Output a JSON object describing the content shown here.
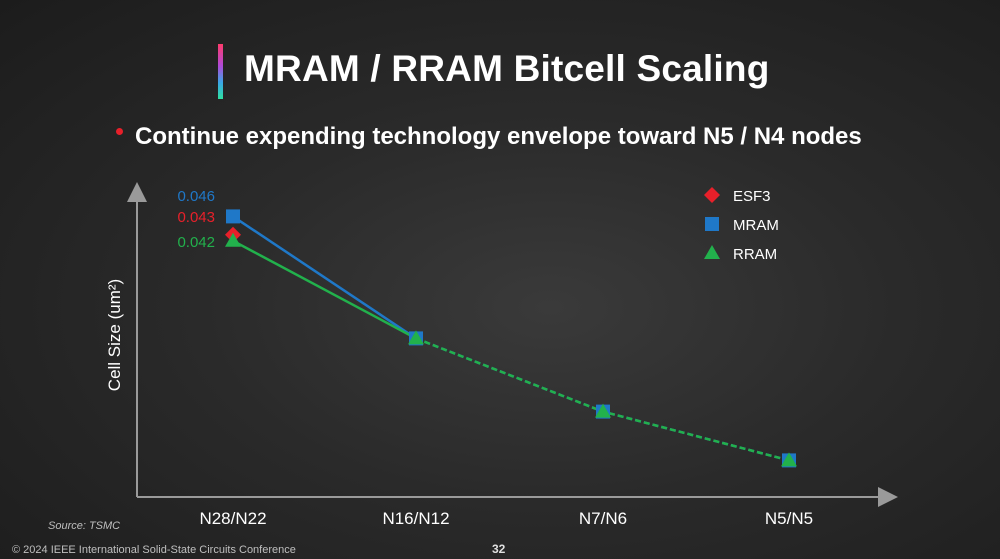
{
  "slide": {
    "title": "MRAM / RRAM Bitcell Scaling",
    "bullet": "Continue expending technology envelope toward N5 / N4 nodes",
    "source": "Source: TSMC",
    "footer": "© 2024 IEEE International Solid-State Circuits Conference",
    "page_number": "32"
  },
  "chart_data": {
    "type": "line",
    "title": "",
    "xlabel": "",
    "ylabel": "Cell Size (um²)",
    "categories": [
      "N28/N22",
      "N16/N12",
      "N7/N6",
      "N5/N5"
    ],
    "ylim": [
      0,
      0.05
    ],
    "legend_position": "top-right",
    "series": [
      {
        "name": "ESF3",
        "color": "#e8202a",
        "marker": "diamond",
        "values": [
          0.043,
          null,
          null,
          null
        ],
        "labels": [
          "0.043",
          null,
          null,
          null
        ]
      },
      {
        "name": "MRAM",
        "color": "#1f78c8",
        "marker": "square",
        "values": [
          0.046,
          0.026,
          0.014,
          0.006
        ],
        "labels": [
          "0.046",
          null,
          null,
          null
        ]
      },
      {
        "name": "RRAM",
        "color": "#22b14c",
        "marker": "triangle",
        "values": [
          0.042,
          0.026,
          0.014,
          0.006
        ],
        "labels": [
          "0.042",
          null,
          null,
          null
        ]
      }
    ],
    "line_styles": [
      "solid",
      "dashed",
      "dashed"
    ]
  }
}
